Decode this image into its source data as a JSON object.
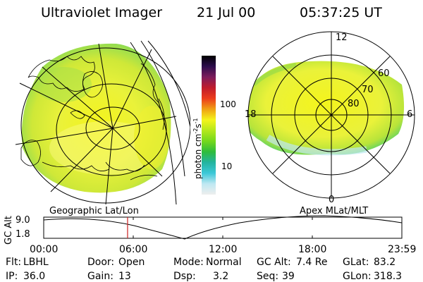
{
  "header": {
    "instrument": "Ultraviolet Imager",
    "date": "21 Jul 00",
    "time": "05:37:25 UT"
  },
  "colorbar": {
    "label": "photon cm",
    "label_exp1": "-2",
    "label_mid": "s",
    "label_exp2": "-1",
    "tick_high": "100",
    "tick_low": "10",
    "stops": [
      "#eeeeee",
      "#bfe8f2",
      "#3cc8d8",
      "#24b4a0",
      "#2ebc3c",
      "#74d81c",
      "#b4e81c",
      "#f4f41c",
      "#f0a014",
      "#ec3c1c",
      "#c01c2c",
      "#7c1c5c",
      "#2c0c4c",
      "#000000"
    ]
  },
  "left_panel": {
    "label": "Geographic Lat/Lon"
  },
  "right_panel": {
    "label": "Apex MLat/MLT",
    "mlt_labels": {
      "top": "12",
      "right": "6",
      "left": "18",
      "bottom": "0"
    },
    "lat_labels": [
      "60",
      "70",
      "80"
    ]
  },
  "altitude_plot": {
    "ylabel": "GC Alt",
    "ymax": "9.0",
    "ymin": "1.8",
    "xticks": [
      "00:00",
      "06:00",
      "12:00",
      "18:00",
      "23:59"
    ],
    "marker_color": "#cc2020",
    "marker_time_hours": 5.62
  },
  "footer": {
    "row1": [
      {
        "key": "Flt:",
        "val": "LBHL"
      },
      {
        "key": "Door:",
        "val": "Open"
      },
      {
        "key": "Mode:",
        "val": "Normal"
      },
      {
        "key": "GC Alt:",
        "val": "7.4 Re"
      },
      {
        "key": "GLat:",
        "val": "83.2"
      }
    ],
    "row2": [
      {
        "key": "IP:",
        "val": "36.0"
      },
      {
        "key": "Gain:",
        "val": "13"
      },
      {
        "key": "Dsp:",
        "val": "3.2"
      },
      {
        "key": "Seq:",
        "val": "39"
      },
      {
        "key": "GLon:",
        "val": "318.3"
      }
    ]
  }
}
